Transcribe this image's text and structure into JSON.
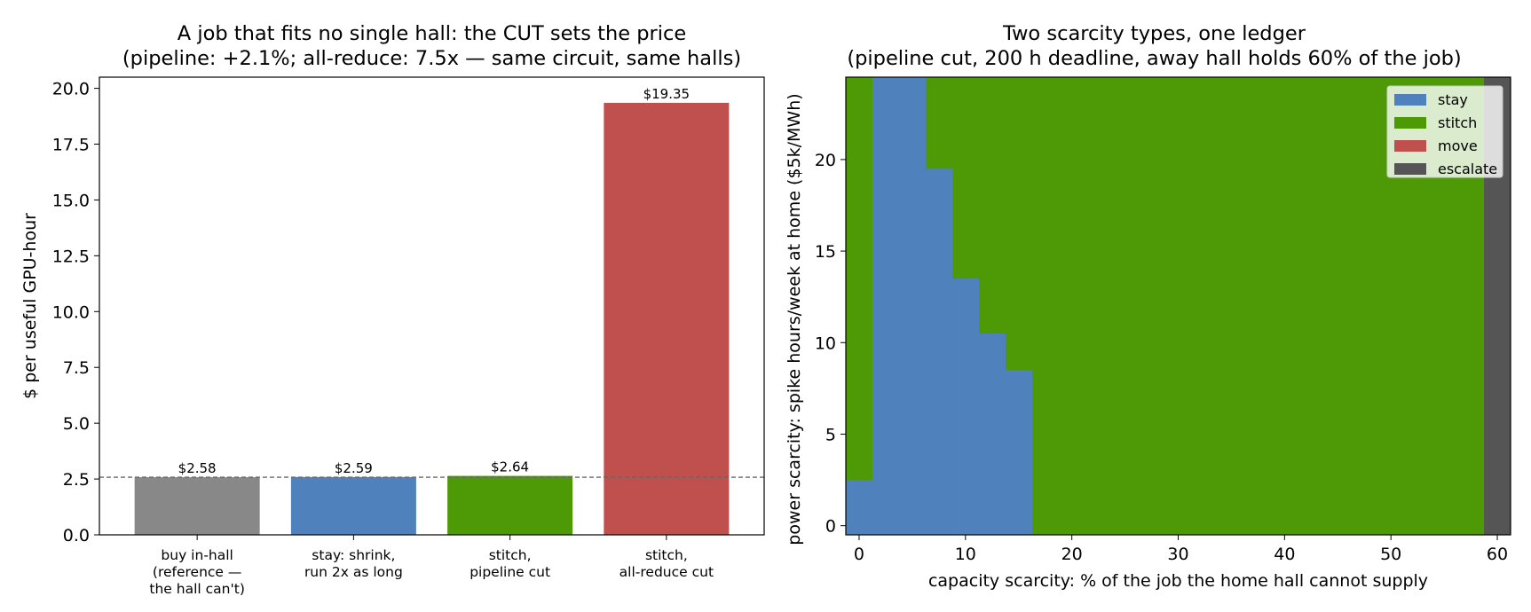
{
  "colors": {
    "stay": "#4f81bd",
    "stitch": "#4e9a06",
    "move": "#c0504d",
    "escalate": "#555555",
    "reference": "#888888",
    "refline": "#666666"
  },
  "chart_data": [
    {
      "type": "bar",
      "title_line1": "A job that fits no single hall: the CUT sets the price",
      "title_line2": "(pipeline: +2.1%; all-reduce: 7.5x — same circuit, same halls)",
      "xlabel": "",
      "ylabel": "$ per useful GPU-hour",
      "ylim": [
        0,
        20.5
      ],
      "yticks": [
        "0.0",
        "2.5",
        "5.0",
        "7.5",
        "10.0",
        "12.5",
        "15.0",
        "17.5",
        "20.0"
      ],
      "reference_line": 2.58,
      "categories": [
        [
          "buy in-hall",
          "(reference —",
          "the hall can't)"
        ],
        [
          "stay: shrink,",
          "run 2x as long"
        ],
        [
          "stitch,",
          "pipeline cut"
        ],
        [
          "stitch,",
          "all-reduce cut"
        ]
      ],
      "values": [
        2.58,
        2.59,
        2.64,
        19.35
      ],
      "value_labels": [
        "$2.58",
        "$2.59",
        "$2.64",
        "$19.35"
      ],
      "bar_colors": [
        "reference",
        "stay",
        "stitch",
        "move"
      ],
      "grid": false
    },
    {
      "type": "heatmap",
      "title_line1": "Two scarcity types, one ledger",
      "title_line2": "(pipeline cut, 200 h deadline, away hall holds 60% of the job)",
      "xlabel": "capacity scarcity: % of the job the home hall cannot supply",
      "ylabel": "power scarcity: spike hours/week at home ($5k/MWh)",
      "xlim": [
        -1.25,
        61.25
      ],
      "ylim": [
        -0.5,
        24.5
      ],
      "xticks": [
        "0",
        "10",
        "20",
        "30",
        "40",
        "50",
        "60"
      ],
      "yticks": [
        "0",
        "5",
        "10",
        "15",
        "20"
      ],
      "legend_position": "top-right",
      "legend": [
        "stay",
        "stitch",
        "move",
        "escalate"
      ],
      "regions": [
        {
          "label": "stitch",
          "x": [
            -1.25,
            58.75
          ],
          "y": [
            -0.5,
            24.5
          ]
        },
        {
          "label": "stay",
          "x": [
            -1.25,
            1.25
          ],
          "y": [
            -0.5,
            2.5
          ]
        },
        {
          "label": "stay",
          "x": [
            1.25,
            6.25
          ],
          "y": [
            -0.5,
            24.5
          ]
        },
        {
          "label": "stay",
          "x": [
            6.25,
            8.75
          ],
          "y": [
            -0.5,
            19.5
          ]
        },
        {
          "label": "stay",
          "x": [
            8.75,
            11.25
          ],
          "y": [
            -0.5,
            13.5
          ]
        },
        {
          "label": "stay",
          "x": [
            11.25,
            13.75
          ],
          "y": [
            -0.5,
            10.5
          ]
        },
        {
          "label": "stay",
          "x": [
            13.75,
            16.25
          ],
          "y": [
            -0.5,
            8.5
          ]
        },
        {
          "label": "escalate",
          "x": [
            58.75,
            61.25
          ],
          "y": [
            -0.5,
            24.5
          ]
        }
      ],
      "grid": false
    }
  ]
}
